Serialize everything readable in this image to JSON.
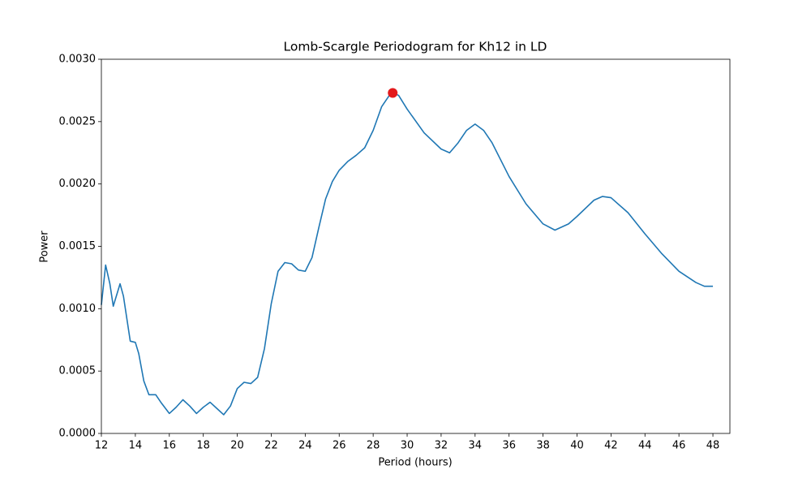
{
  "chart_data": {
    "type": "line",
    "title": "Lomb-Scargle Periodogram for Kh12 in LD",
    "xlabel": "Period (hours)",
    "ylabel": "Power",
    "x": [
      12,
      12.25,
      12.5,
      12.7,
      13.1,
      13.3,
      13.7,
      14.0,
      14.2,
      14.5,
      14.8,
      15.2,
      15.5,
      16.0,
      16.4,
      16.8,
      17.2,
      17.6,
      18.0,
      18.4,
      18.8,
      19.2,
      19.6,
      20.0,
      20.4,
      20.8,
      21.2,
      21.6,
      22.0,
      22.4,
      22.8,
      23.2,
      23.6,
      24.0,
      24.4,
      24.8,
      25.2,
      25.6,
      26.0,
      26.5,
      27.0,
      27.5,
      28.0,
      28.5,
      29.0,
      29.2,
      29.5,
      30.0,
      31.0,
      32.0,
      32.5,
      33.0,
      33.5,
      34.0,
      34.5,
      35.0,
      36.0,
      37.0,
      38.0,
      38.7,
      39.5,
      40.0,
      41.0,
      41.5,
      42.0,
      43.0,
      44.0,
      45.0,
      46.0,
      47.0,
      47.5,
      48.0
    ],
    "series": [
      {
        "color": "#1f77b4",
        "values": [
          0.00103,
          0.00135,
          0.0012,
          0.00102,
          0.0012,
          0.0011,
          0.00074,
          0.00073,
          0.00064,
          0.00042,
          0.00031,
          0.00031,
          0.00025,
          0.00016,
          0.00021,
          0.00027,
          0.00022,
          0.00016,
          0.00021,
          0.00025,
          0.0002,
          0.00015,
          0.00022,
          0.00036,
          0.00041,
          0.0004,
          0.00045,
          0.00068,
          0.00104,
          0.0013,
          0.00137,
          0.00136,
          0.00131,
          0.0013,
          0.00141,
          0.00165,
          0.00188,
          0.00202,
          0.00211,
          0.00218,
          0.00223,
          0.00229,
          0.00243,
          0.00262,
          0.00272,
          0.00273,
          0.00271,
          0.0026,
          0.00241,
          0.00228,
          0.00225,
          0.00233,
          0.00243,
          0.00248,
          0.00243,
          0.00233,
          0.00206,
          0.00184,
          0.00168,
          0.00163,
          0.00168,
          0.00174,
          0.00187,
          0.0019,
          0.00189,
          0.00177,
          0.0016,
          0.00144,
          0.0013,
          0.00121,
          0.00118,
          0.00118
        ]
      }
    ],
    "peak": {
      "x": 29.15,
      "y": 0.00273,
      "color": "#e31a1c"
    },
    "xlim": [
      12,
      49
    ],
    "xticks": [
      12,
      14,
      16,
      18,
      20,
      22,
      24,
      26,
      28,
      30,
      32,
      34,
      36,
      38,
      40,
      42,
      44,
      46,
      48
    ],
    "ylim": [
      0,
      0.003
    ],
    "yticks": [
      {
        "value": 0,
        "label": "0.0000"
      },
      {
        "value": 0.0005,
        "label": "0.0005"
      },
      {
        "value": 0.001,
        "label": "0.0010"
      },
      {
        "value": 0.0015,
        "label": "0.0015"
      },
      {
        "value": 0.002,
        "label": "0.0020"
      },
      {
        "value": 0.0025,
        "label": "0.0025"
      },
      {
        "value": 0.003,
        "label": "0.0030"
      }
    ]
  }
}
